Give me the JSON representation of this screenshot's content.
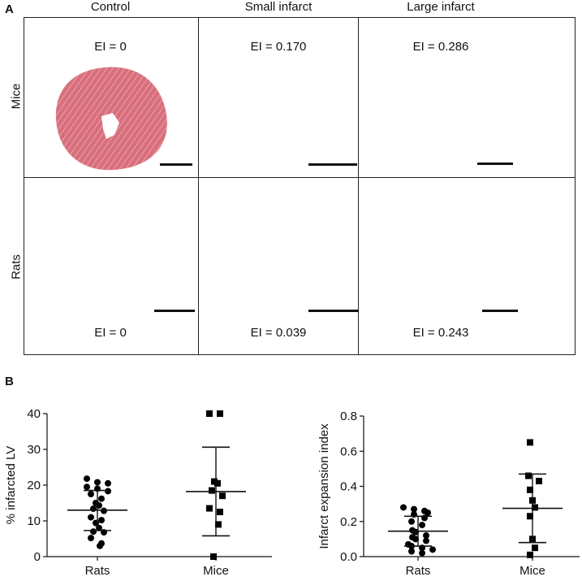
{
  "panel_a": {
    "letter": "A",
    "columns": [
      "Control",
      "Small infarct",
      "Large infarct"
    ],
    "rows": [
      "Mice",
      "Rats"
    ],
    "ei_labels": {
      "mice": [
        "EI = 0",
        "EI = 0.170",
        "EI = 0.286"
      ],
      "rats": [
        "EI = 0",
        "EI = 0.039",
        "EI = 0.243"
      ]
    },
    "colors": {
      "tissue_red": "#d9737f",
      "tissue_pink": "#e8a4ac",
      "infarct_green": "#7fcdb8"
    }
  },
  "panel_b": {
    "letter": "B"
  },
  "chart_data": [
    {
      "type": "scatter",
      "ylabel": "% infarcted  LV",
      "xlabel": "",
      "categories": [
        "Rats",
        "Mice"
      ],
      "ylim": [
        0,
        40
      ],
      "yticks": [
        "0",
        "10",
        "20",
        "30",
        "40"
      ],
      "series": [
        {
          "name": "Rats",
          "marker": "circle",
          "values": [
            21.8,
            20.8,
            20.5,
            19.5,
            19.0,
            18.3,
            17.5,
            16.2,
            15.0,
            14.3,
            13.4,
            12.8,
            11.0,
            10.2,
            9.4,
            8.0,
            7.0,
            6.8,
            5.2,
            3.7,
            3.0
          ],
          "mean": 13.0,
          "sd_low": 7.3,
          "sd_high": 18.5
        },
        {
          "name": "Mice",
          "marker": "square",
          "values": [
            40.0,
            40.0,
            21.0,
            20.5,
            18.5,
            17.0,
            13.5,
            12.5,
            9.0,
            0.0
          ],
          "mean": 18.2,
          "sd_low": 5.8,
          "sd_high": 30.6
        }
      ]
    },
    {
      "type": "scatter",
      "ylabel": "Infarct expansion index",
      "xlabel": "",
      "categories": [
        "Rats",
        "Mice"
      ],
      "ylim": [
        0,
        0.8
      ],
      "yticks": [
        "0.0",
        "0.2",
        "0.4",
        "0.6",
        "0.8"
      ],
      "series": [
        {
          "name": "Rats",
          "marker": "circle",
          "values": [
            0.28,
            0.27,
            0.26,
            0.25,
            0.24,
            0.22,
            0.2,
            0.18,
            0.15,
            0.14,
            0.12,
            0.11,
            0.1,
            0.09,
            0.07,
            0.06,
            0.05,
            0.04,
            0.03,
            0.02
          ],
          "mean": 0.145,
          "sd_low": 0.06,
          "sd_high": 0.23
        },
        {
          "name": "Mice",
          "marker": "square",
          "values": [
            0.65,
            0.46,
            0.43,
            0.38,
            0.32,
            0.28,
            0.23,
            0.1,
            0.05,
            0.01
          ],
          "mean": 0.275,
          "sd_low": 0.08,
          "sd_high": 0.47
        }
      ]
    }
  ]
}
